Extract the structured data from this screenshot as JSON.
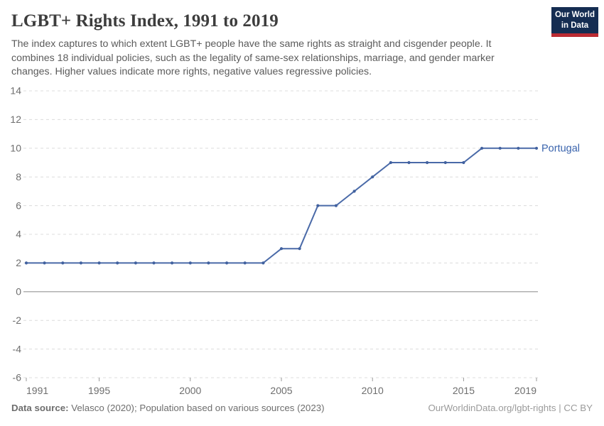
{
  "header": {
    "title": "LGBT+ Rights Index, 1991 to 2019",
    "subtitle": "The index captures to which extent LGBT+ people have the same rights as straight and cisgender people. It combines 18 individual policies, such as the legality of same-sex relationships, marriage, and gender marker changes. Higher values indicate more rights, negative values regressive policies."
  },
  "logo": {
    "line1": "Our World",
    "line2": "in Data"
  },
  "chart_data": {
    "type": "line",
    "title": "LGBT+ Rights Index, 1991 to 2019",
    "x": [
      1991,
      1992,
      1993,
      1994,
      1995,
      1996,
      1997,
      1998,
      1999,
      2000,
      2001,
      2002,
      2003,
      2004,
      2005,
      2006,
      2007,
      2008,
      2009,
      2010,
      2011,
      2012,
      2013,
      2014,
      2015,
      2016,
      2017,
      2018,
      2019
    ],
    "series": [
      {
        "name": "Portugal",
        "values": [
          2,
          2,
          2,
          2,
          2,
          2,
          2,
          2,
          2,
          2,
          2,
          2,
          2,
          2,
          3,
          3,
          6,
          6,
          7,
          8,
          9,
          9,
          9,
          9,
          9,
          10,
          10,
          10,
          10
        ]
      }
    ],
    "ylim": [
      -6,
      14
    ],
    "yticks": [
      -6,
      -4,
      -2,
      0,
      2,
      4,
      6,
      8,
      10,
      12,
      14
    ],
    "xticks": [
      1991,
      1995,
      2000,
      2005,
      2010,
      2015,
      2019
    ],
    "grid": "horizontal-dashed",
    "zero_line": true,
    "legend": "end-of-line-label",
    "xlabel": "",
    "ylabel": ""
  },
  "footer": {
    "datasource_label": "Data source:",
    "datasource_text": " Velasco (2020); Population based on various sources (2023)",
    "credit": "OurWorldinData.org/lgbt-rights | CC BY"
  },
  "colors": {
    "line": "#4a6aa8",
    "marker": "#41619f",
    "entity_label": "#3a64ad",
    "grid": "#dcdcdc",
    "zero_line": "#a8a8a8",
    "tick": "#9a9a9a",
    "axis_text": "#6e6e6e",
    "title": "#3d3d3d",
    "subtitle": "#5b5b5b"
  }
}
